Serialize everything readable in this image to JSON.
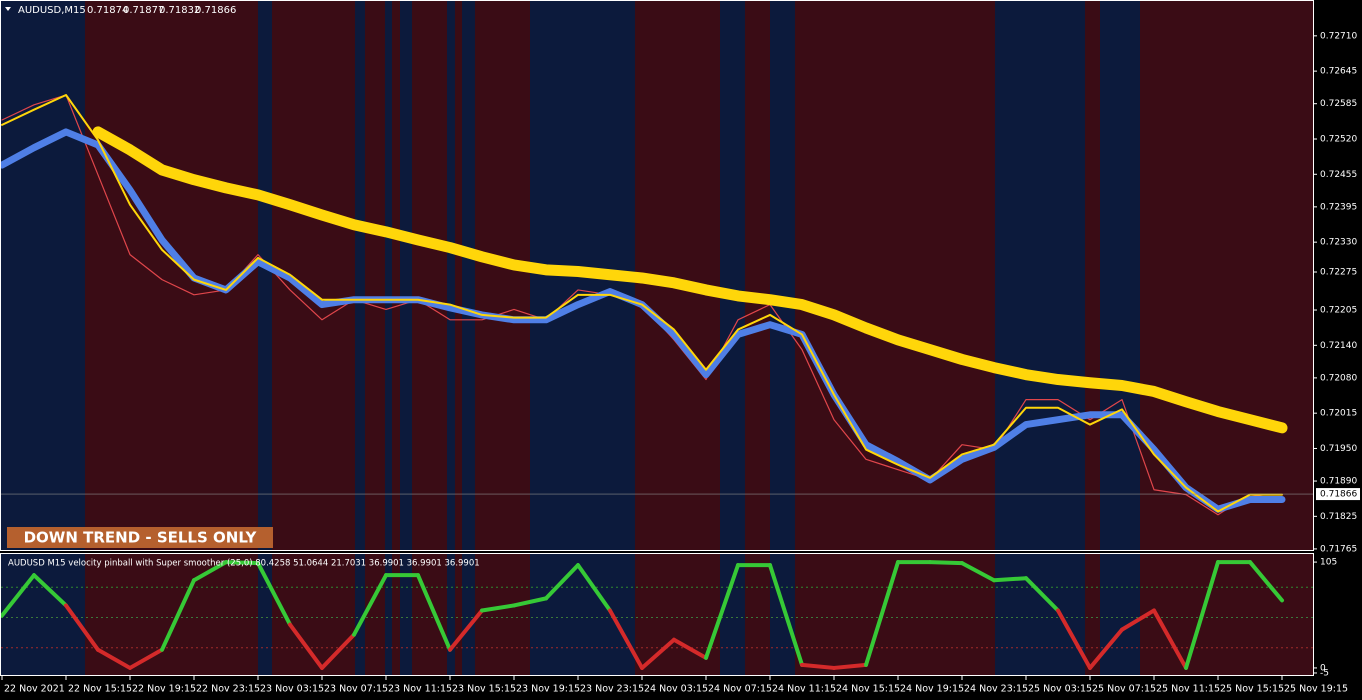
{
  "chart_data": [
    {
      "type": "line",
      "symbol": "AUDUSD,M15",
      "quote": [
        0.71874,
        0.71877,
        0.71832,
        0.71866
      ],
      "annotation": "DOWN TREND - SELLS ONLY",
      "categories": [
        "22 Nov 2021",
        null,
        "22 Nov 15:15",
        null,
        "22 Nov 19:15",
        null,
        "22 Nov 23:15",
        null,
        "23 Nov 03:15",
        null,
        "23 Nov 07:15",
        null,
        "23 Nov 11:15",
        null,
        "23 Nov 15:15",
        null,
        "23 Nov 19:15",
        null,
        "23 Nov 23:15",
        null,
        "24 Nov 03:15",
        null,
        "24 Nov 07:15",
        null,
        "24 Nov 11:15",
        null,
        "24 Nov 15:15",
        null,
        "24 Nov 19:15",
        null,
        "24 Nov 23:15",
        null,
        "25 Nov 03:15",
        null,
        "25 Nov 07:15",
        null,
        "25 Nov 11:15",
        null,
        "25 Nov 15:15",
        null,
        "25 Nov 19:15"
      ],
      "ylim": [
        0.71763,
        0.72776
      ],
      "yticks": [
        {
          "value": 0.7271,
          "label": "0.72710"
        },
        0.72645,
        0.72585,
        {
          "value": 0.7252,
          "label": "0.72520"
        },
        0.72455,
        0.72395,
        {
          "value": 0.7233,
          "label": "0.72330"
        },
        0.72275,
        0.72205,
        {
          "value": 0.7214,
          "label": "0.72140"
        },
        {
          "value": 0.7208,
          "label": "0.72080"
        },
        0.72015,
        {
          "value": 0.7195,
          "label": "0.71950"
        },
        {
          "value": 0.7189,
          "label": "0.71890"
        },
        0.71825,
        0.71765
      ],
      "series": [
        {
          "color": "#e0464b",
          "values": [
            0.72555,
            0.72583,
            0.72601,
            0.72454,
            0.72307,
            0.72261,
            0.72233,
            0.72242,
            0.72307,
            0.72242,
            0.72187,
            0.72224,
            0.72206,
            0.72224,
            0.72187,
            0.72187,
            0.72206,
            0.72187,
            0.72242,
            0.72233,
            0.72215,
            0.7215,
            0.72077,
            0.72187,
            0.72215,
            0.72132,
            0.72003,
            0.7193,
            0.71911,
            0.71892,
            0.71957,
            0.71948,
            0.7204,
            0.7204,
            0.72003,
            0.7204,
            0.71874,
            0.71865,
            0.71828,
            0.71865,
            0.71856
          ]
        },
        {
          "color": "#4f7fe6",
          "values": [
            0.72472,
            0.72504,
            0.72533,
            0.72509,
            0.72426,
            0.72334,
            0.72264,
            0.72242,
            0.72294,
            0.72264,
            0.72215,
            0.72224,
            0.72224,
            0.72224,
            0.72209,
            0.72196,
            0.72187,
            0.72187,
            0.72215,
            0.72239,
            0.72215,
            0.7216,
            0.72086,
            0.7216,
            0.72178,
            0.7216,
            0.72049,
            0.71957,
            0.71926,
            0.71892,
            0.7193,
            0.71952,
            0.71994,
            0.72003,
            0.72012,
            0.72012,
            0.71948,
            0.71878,
            0.71838,
            0.71856,
            0.71856
          ]
        },
        {
          "color": "#ffd60a",
          "values": [
            0.72546,
            0.72574,
            0.72601,
            0.72518,
            0.72399,
            0.72316,
            0.72261,
            0.72242,
            0.72301,
            0.7227,
            0.72224,
            0.72224,
            0.72224,
            0.72224,
            0.72215,
            0.72196,
            0.72191,
            0.72191,
            0.72233,
            0.72233,
            0.72215,
            0.72169,
            0.72095,
            0.72169,
            0.72196,
            0.7216,
            0.72049,
            0.71948,
            0.7192,
            0.71896,
            0.71939,
            0.71957,
            0.72025,
            0.72025,
            0.71994,
            0.72022,
            0.71939,
            0.71878,
            0.71834,
            0.71865,
            0.71865
          ]
        },
        {
          "color": "#ffd60a",
          "values": [
            null,
            null,
            null,
            0.72533,
            0.725,
            0.72463,
            0.72445,
            0.7243,
            0.72417,
            0.72399,
            0.7238,
            0.72362,
            0.72349,
            0.72334,
            0.7232,
            0.72303,
            0.72288,
            0.72279,
            0.72276,
            0.7227,
            0.72264,
            0.72255,
            0.72242,
            0.72231,
            0.72224,
            0.72215,
            0.72196,
            0.72172,
            0.7215,
            0.72132,
            0.72114,
            0.72099,
            0.72086,
            0.72077,
            0.72071,
            0.72066,
            0.72055,
            0.72036,
            0.72018,
            0.72003,
            0.71988
          ]
        }
      ]
    },
    {
      "type": "line",
      "title": "AUDUSD M15 velocity pinball with Super smoother (25,0) 80.4258 51.0644 21.7031 36.9901 36.9901 36.9901",
      "ylim": [
        -7,
        114
      ],
      "yticks": [
        105,
        0,
        -5
      ],
      "levels": [
        80,
        50,
        20
      ],
      "color_above": "#36c936",
      "color_below": "#d42a2a",
      "values": [
        52,
        92,
        62,
        18,
        0,
        18,
        87,
        105,
        104,
        43,
        0,
        33,
        92,
        92,
        18,
        57,
        62,
        69,
        102,
        57,
        0,
        28,
        10,
        102,
        102,
        3,
        0,
        3,
        105,
        105,
        104,
        87,
        89,
        57,
        0,
        38,
        57,
        0,
        105,
        105,
        67
      ]
    }
  ]
}
